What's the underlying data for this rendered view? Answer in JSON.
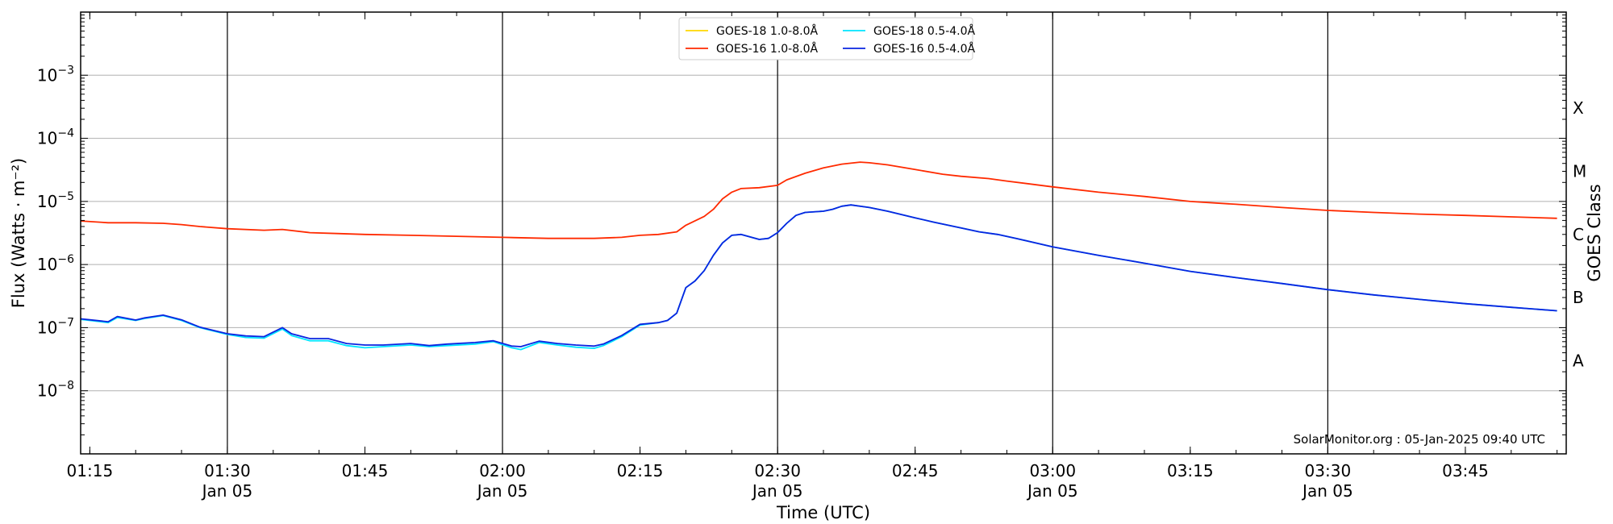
{
  "chart_data": {
    "type": "line",
    "title": "",
    "xlabel": "Time (UTC)",
    "ylabel": "Flux (Watts · m⁻²)",
    "y2label": "GOES Class",
    "y_scale": "log",
    "ylim": [
      1e-09,
      0.01
    ],
    "xlim": [
      "01:14",
      "03:56"
    ],
    "grid": true,
    "legend_position": "top-center",
    "credit": "SolarMonitor.org : 05-Jan-2025 09:40 UTC",
    "x_ticks": [
      {
        "time": "01:15",
        "label": "01:15",
        "date": ""
      },
      {
        "time": "01:30",
        "label": "01:30",
        "date": "Jan 05"
      },
      {
        "time": "01:45",
        "label": "01:45",
        "date": ""
      },
      {
        "time": "02:00",
        "label": "02:00",
        "date": "Jan 05"
      },
      {
        "time": "02:15",
        "label": "02:15",
        "date": ""
      },
      {
        "time": "02:30",
        "label": "02:30",
        "date": "Jan 05"
      },
      {
        "time": "02:45",
        "label": "02:45",
        "date": ""
      },
      {
        "time": "03:00",
        "label": "03:00",
        "date": "Jan 05"
      },
      {
        "time": "03:15",
        "label": "03:15",
        "date": ""
      },
      {
        "time": "03:30",
        "label": "03:30",
        "date": "Jan 05"
      },
      {
        "time": "03:45",
        "label": "03:45",
        "date": ""
      }
    ],
    "y_ticks": [
      {
        "value": 1e-08,
        "mantissa": "10",
        "exponent": "−8"
      },
      {
        "value": 1e-07,
        "mantissa": "10",
        "exponent": "−7"
      },
      {
        "value": 1e-06,
        "mantissa": "10",
        "exponent": "−6"
      },
      {
        "value": 1e-05,
        "mantissa": "10",
        "exponent": "−5"
      },
      {
        "value": 0.0001,
        "mantissa": "10",
        "exponent": "−4"
      },
      {
        "value": 0.001,
        "mantissa": "10",
        "exponent": "−3"
      }
    ],
    "goes_classes": [
      {
        "label": "A",
        "value": 3e-08
      },
      {
        "label": "B",
        "value": 3e-07
      },
      {
        "label": "C",
        "value": 3e-06
      },
      {
        "label": "M",
        "value": 3e-05
      },
      {
        "label": "X",
        "value": 0.0003
      }
    ],
    "series": [
      {
        "name": "GOES-18 1.0-8.0Å",
        "color": "#ffd700",
        "points": []
      },
      {
        "name": "GOES-16 1.0-8.0Å",
        "color": "#ff2a00",
        "points": [
          [
            "01:14",
            4.9e-06
          ],
          [
            "01:17",
            4.6e-06
          ],
          [
            "01:20",
            4.6e-06
          ],
          [
            "01:23",
            4.5e-06
          ],
          [
            "01:25",
            4.3e-06
          ],
          [
            "01:27",
            4e-06
          ],
          [
            "01:30",
            3.7e-06
          ],
          [
            "01:34",
            3.5e-06
          ],
          [
            "01:36",
            3.6e-06
          ],
          [
            "01:39",
            3.2e-06
          ],
          [
            "01:42",
            3.1e-06
          ],
          [
            "01:45",
            3e-06
          ],
          [
            "01:50",
            2.9e-06
          ],
          [
            "01:55",
            2.8e-06
          ],
          [
            "02:00",
            2.7e-06
          ],
          [
            "02:05",
            2.6e-06
          ],
          [
            "02:10",
            2.6e-06
          ],
          [
            "02:13",
            2.7e-06
          ],
          [
            "02:15",
            2.9e-06
          ],
          [
            "02:17",
            3e-06
          ],
          [
            "02:19",
            3.3e-06
          ],
          [
            "02:20",
            4.2e-06
          ],
          [
            "02:22",
            5.8e-06
          ],
          [
            "02:23",
            7.5e-06
          ],
          [
            "02:24",
            1.1e-05
          ],
          [
            "02:25",
            1.4e-05
          ],
          [
            "02:26",
            1.6e-05
          ],
          [
            "02:28",
            1.65e-05
          ],
          [
            "02:30",
            1.8e-05
          ],
          [
            "02:31",
            2.2e-05
          ],
          [
            "02:33",
            2.8e-05
          ],
          [
            "02:35",
            3.4e-05
          ],
          [
            "02:37",
            3.9e-05
          ],
          [
            "02:39",
            4.2e-05
          ],
          [
            "02:40",
            4.1e-05
          ],
          [
            "02:42",
            3.8e-05
          ],
          [
            "02:45",
            3.2e-05
          ],
          [
            "02:48",
            2.7e-05
          ],
          [
            "02:50",
            2.5e-05
          ],
          [
            "02:53",
            2.3e-05
          ],
          [
            "02:55",
            2.1e-05
          ],
          [
            "03:00",
            1.7e-05
          ],
          [
            "03:05",
            1.4e-05
          ],
          [
            "03:10",
            1.2e-05
          ],
          [
            "03:15",
            1e-05
          ],
          [
            "03:20",
            9e-06
          ],
          [
            "03:25",
            8e-06
          ],
          [
            "03:30",
            7.2e-06
          ],
          [
            "03:35",
            6.7e-06
          ],
          [
            "03:40",
            6.3e-06
          ],
          [
            "03:45",
            6e-06
          ],
          [
            "03:50",
            5.7e-06
          ],
          [
            "03:55",
            5.4e-06
          ]
        ]
      },
      {
        "name": "GOES-18 0.5-4.0Å",
        "color": "#00e5ff",
        "points": [
          [
            "01:14",
            1.35e-07
          ],
          [
            "01:15",
            1.3e-07
          ],
          [
            "01:17",
            1.2e-07
          ],
          [
            "01:18",
            1.45e-07
          ],
          [
            "01:20",
            1.3e-07
          ],
          [
            "01:21",
            1.4e-07
          ],
          [
            "01:23",
            1.55e-07
          ],
          [
            "01:25",
            1.3e-07
          ],
          [
            "01:27",
            1e-07
          ],
          [
            "01:30",
            7.8e-08
          ],
          [
            "01:32",
            7e-08
          ],
          [
            "01:34",
            6.8e-08
          ],
          [
            "01:36",
            9.5e-08
          ],
          [
            "01:37",
            7.5e-08
          ],
          [
            "01:39",
            6.2e-08
          ],
          [
            "01:41",
            6.2e-08
          ],
          [
            "01:43",
            5.2e-08
          ],
          [
            "01:45",
            4.8e-08
          ],
          [
            "01:47",
            5e-08
          ],
          [
            "01:50",
            5.3e-08
          ],
          [
            "01:52",
            5e-08
          ],
          [
            "01:54",
            5.2e-08
          ],
          [
            "01:57",
            5.5e-08
          ],
          [
            "01:59",
            6e-08
          ],
          [
            "02:01",
            4.8e-08
          ],
          [
            "02:02",
            4.5e-08
          ],
          [
            "02:04",
            5.8e-08
          ],
          [
            "02:06",
            5.3e-08
          ],
          [
            "02:08",
            4.9e-08
          ],
          [
            "02:10",
            4.7e-08
          ],
          [
            "02:11",
            5.2e-08
          ],
          [
            "02:13",
            7.2e-08
          ],
          [
            "02:15",
            1.1e-07
          ],
          [
            "02:17",
            1.2e-07
          ],
          [
            "02:18",
            1.3e-07
          ],
          [
            "02:19",
            1.7e-07
          ],
          [
            "02:20",
            4.3e-07
          ],
          [
            "02:21",
            5.5e-07
          ],
          [
            "02:22",
            8e-07
          ],
          [
            "02:23",
            1.4e-06
          ],
          [
            "02:24",
            2.2e-06
          ],
          [
            "02:25",
            2.9e-06
          ],
          [
            "02:26",
            3e-06
          ],
          [
            "02:28",
            2.5e-06
          ],
          [
            "02:29",
            2.6e-06
          ],
          [
            "02:30",
            3.2e-06
          ],
          [
            "02:31",
            4.5e-06
          ],
          [
            "02:32",
            6e-06
          ],
          [
            "02:33",
            6.7e-06
          ],
          [
            "02:35",
            7e-06
          ],
          [
            "02:36",
            7.5e-06
          ],
          [
            "02:37",
            8.4e-06
          ],
          [
            "02:38",
            8.8e-06
          ],
          [
            "02:40",
            8e-06
          ],
          [
            "02:42",
            7e-06
          ],
          [
            "02:45",
            5.5e-06
          ],
          [
            "02:47",
            4.7e-06
          ],
          [
            "02:50",
            3.8e-06
          ],
          [
            "02:52",
            3.3e-06
          ],
          [
            "02:54",
            3e-06
          ],
          [
            "02:56",
            2.6e-06
          ],
          [
            "03:00",
            1.9e-06
          ],
          [
            "03:05",
            1.4e-06
          ],
          [
            "03:10",
            1.05e-06
          ],
          [
            "03:15",
            7.8e-07
          ],
          [
            "03:20",
            6.2e-07
          ],
          [
            "03:25",
            5e-07
          ],
          [
            "03:30",
            4e-07
          ],
          [
            "03:35",
            3.3e-07
          ],
          [
            "03:40",
            2.8e-07
          ],
          [
            "03:45",
            2.4e-07
          ],
          [
            "03:50",
            2.1e-07
          ],
          [
            "03:55",
            1.85e-07
          ]
        ]
      },
      {
        "name": "GOES-16 0.5-4.0Å",
        "color": "#0a24e0",
        "points": [
          [
            "01:14",
            1.38e-07
          ],
          [
            "01:15",
            1.33e-07
          ],
          [
            "01:17",
            1.24e-07
          ],
          [
            "01:18",
            1.5e-07
          ],
          [
            "01:20",
            1.32e-07
          ],
          [
            "01:21",
            1.43e-07
          ],
          [
            "01:23",
            1.58e-07
          ],
          [
            "01:25",
            1.33e-07
          ],
          [
            "01:27",
            1.02e-07
          ],
          [
            "01:30",
            8e-08
          ],
          [
            "01:32",
            7.4e-08
          ],
          [
            "01:34",
            7.2e-08
          ],
          [
            "01:36",
            1e-07
          ],
          [
            "01:37",
            8e-08
          ],
          [
            "01:39",
            6.7e-08
          ],
          [
            "01:41",
            6.7e-08
          ],
          [
            "01:43",
            5.6e-08
          ],
          [
            "01:45",
            5.3e-08
          ],
          [
            "01:47",
            5.3e-08
          ],
          [
            "01:50",
            5.6e-08
          ],
          [
            "01:52",
            5.2e-08
          ],
          [
            "01:54",
            5.5e-08
          ],
          [
            "01:57",
            5.8e-08
          ],
          [
            "01:59",
            6.2e-08
          ],
          [
            "02:01",
            5.1e-08
          ],
          [
            "02:02",
            5e-08
          ],
          [
            "02:04",
            6.1e-08
          ],
          [
            "02:06",
            5.6e-08
          ],
          [
            "02:08",
            5.3e-08
          ],
          [
            "02:10",
            5.1e-08
          ],
          [
            "02:11",
            5.5e-08
          ],
          [
            "02:13",
            7.5e-08
          ],
          [
            "02:15",
            1.13e-07
          ],
          [
            "02:17",
            1.2e-07
          ],
          [
            "02:18",
            1.3e-07
          ],
          [
            "02:19",
            1.7e-07
          ],
          [
            "02:20",
            4.3e-07
          ],
          [
            "02:21",
            5.5e-07
          ],
          [
            "02:22",
            8e-07
          ],
          [
            "02:23",
            1.4e-06
          ],
          [
            "02:24",
            2.2e-06
          ],
          [
            "02:25",
            2.9e-06
          ],
          [
            "02:26",
            3e-06
          ],
          [
            "02:28",
            2.5e-06
          ],
          [
            "02:29",
            2.6e-06
          ],
          [
            "02:30",
            3.2e-06
          ],
          [
            "02:31",
            4.5e-06
          ],
          [
            "02:32",
            6e-06
          ],
          [
            "02:33",
            6.7e-06
          ],
          [
            "02:35",
            7e-06
          ],
          [
            "02:36",
            7.5e-06
          ],
          [
            "02:37",
            8.4e-06
          ],
          [
            "02:38",
            8.8e-06
          ],
          [
            "02:40",
            8e-06
          ],
          [
            "02:42",
            7e-06
          ],
          [
            "02:45",
            5.5e-06
          ],
          [
            "02:47",
            4.7e-06
          ],
          [
            "02:50",
            3.8e-06
          ],
          [
            "02:52",
            3.3e-06
          ],
          [
            "02:54",
            3e-06
          ],
          [
            "02:56",
            2.6e-06
          ],
          [
            "03:00",
            1.9e-06
          ],
          [
            "03:05",
            1.4e-06
          ],
          [
            "03:10",
            1.05e-06
          ],
          [
            "03:15",
            7.8e-07
          ],
          [
            "03:20",
            6.2e-07
          ],
          [
            "03:25",
            5e-07
          ],
          [
            "03:30",
            4e-07
          ],
          [
            "03:35",
            3.3e-07
          ],
          [
            "03:40",
            2.8e-07
          ],
          [
            "03:45",
            2.4e-07
          ],
          [
            "03:50",
            2.1e-07
          ],
          [
            "03:55",
            1.85e-07
          ]
        ]
      }
    ]
  }
}
